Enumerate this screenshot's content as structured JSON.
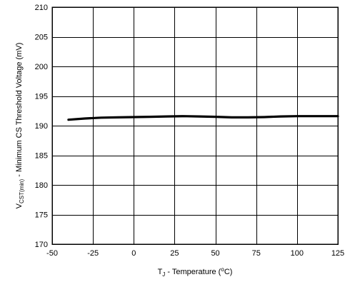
{
  "chart_data": {
    "type": "line",
    "title": "",
    "xlabel": {
      "main": "T",
      "sub": "J",
      "rest": " - Temperature  (",
      "unit_sup": "o",
      "unit_end": "C)"
    },
    "ylabel": {
      "main": "V",
      "sub": "CST(min)",
      "rest": " - Minimum CS Threshold Voltage  (mV)"
    },
    "xlim": [
      -50,
      125
    ],
    "ylim": [
      170,
      210
    ],
    "xticks": [
      -50,
      -25,
      0,
      25,
      50,
      75,
      100,
      125
    ],
    "yticks": [
      170,
      175,
      180,
      185,
      190,
      195,
      200,
      205,
      210
    ],
    "x_tick_labels": [
      "-50",
      "-25",
      "0",
      "25",
      "50",
      "75",
      "100",
      "125"
    ],
    "y_tick_labels": [
      "170",
      "175",
      "180",
      "185",
      "190",
      "195",
      "200",
      "205",
      "210"
    ],
    "grid": true,
    "series": [
      {
        "color": "#000000",
        "x": [
          -40,
          -30,
          -20,
          -10,
          0,
          10,
          20,
          30,
          40,
          50,
          60,
          70,
          80,
          90,
          100,
          110,
          125
        ],
        "y": [
          191.0,
          191.2,
          191.35,
          191.4,
          191.45,
          191.5,
          191.55,
          191.6,
          191.55,
          191.5,
          191.4,
          191.4,
          191.45,
          191.55,
          191.6,
          191.6,
          191.6
        ]
      }
    ]
  }
}
